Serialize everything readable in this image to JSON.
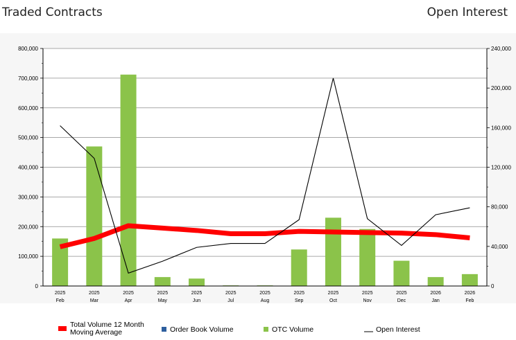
{
  "header": {
    "left_title": "Traded Contracts",
    "right_title": "Open Interest"
  },
  "chart_data": {
    "type": "bar",
    "categories": [
      [
        "2025",
        "Feb"
      ],
      [
        "2025",
        "Mar"
      ],
      [
        "2025",
        "Apr"
      ],
      [
        "2025",
        "May"
      ],
      [
        "2025",
        "Jun"
      ],
      [
        "2025",
        "Jul"
      ],
      [
        "2025",
        "Aug"
      ],
      [
        "2025",
        "Sep"
      ],
      [
        "2025",
        "Oct"
      ],
      [
        "2025",
        "Nov"
      ],
      [
        "2025",
        "Dec"
      ],
      [
        "2026",
        "Jan"
      ],
      [
        "2026",
        "Feb"
      ]
    ],
    "left_axis": {
      "min": 0,
      "max": 800000,
      "ticks": [
        0,
        100000,
        200000,
        300000,
        400000,
        500000,
        600000,
        700000,
        800000
      ],
      "tick_labels": [
        "0",
        "100,000",
        "200,000",
        "300,000",
        "400,000",
        "500,000",
        "600,000",
        "700,000",
        "800,000"
      ]
    },
    "right_axis": {
      "min": 0,
      "max": 240000,
      "ticks": [
        0,
        40000,
        80000,
        120000,
        160000,
        200000,
        240000
      ],
      "tick_labels": [
        "0",
        "40,000",
        "80,000",
        "120,000",
        "160,000",
        "200,000",
        "240,000"
      ]
    },
    "series": [
      {
        "name": "Total Volume 12 Month Moving Average",
        "name_lines": [
          "Total Volume 12 Month",
          "Moving Average"
        ],
        "kind": "thick-line",
        "axis": "left",
        "color": "#ff0000",
        "values": [
          132000,
          160000,
          203000,
          195000,
          187000,
          176000,
          176000,
          184000,
          182000,
          180000,
          178000,
          173000,
          162000
        ]
      },
      {
        "name": "Order Book Volume",
        "kind": "bar",
        "axis": "left",
        "color": "#2e5f9e",
        "values": [
          0,
          0,
          0,
          0,
          0,
          0,
          0,
          0,
          0,
          0,
          0,
          0,
          0
        ]
      },
      {
        "name": "OTC Volume",
        "kind": "bar",
        "axis": "left",
        "color": "#8bc34a",
        "values": [
          160000,
          470000,
          712000,
          30000,
          25000,
          2000,
          2000,
          123000,
          230000,
          192000,
          85000,
          30000,
          40000
        ]
      },
      {
        "name": "Open Interest",
        "kind": "line",
        "axis": "right",
        "color": "#000000",
        "values": [
          162000,
          129000,
          13000,
          25000,
          39000,
          43000,
          43000,
          67000,
          210000,
          68000,
          41000,
          72000,
          79000
        ]
      }
    ],
    "grid": true,
    "legend": "bottom"
  }
}
